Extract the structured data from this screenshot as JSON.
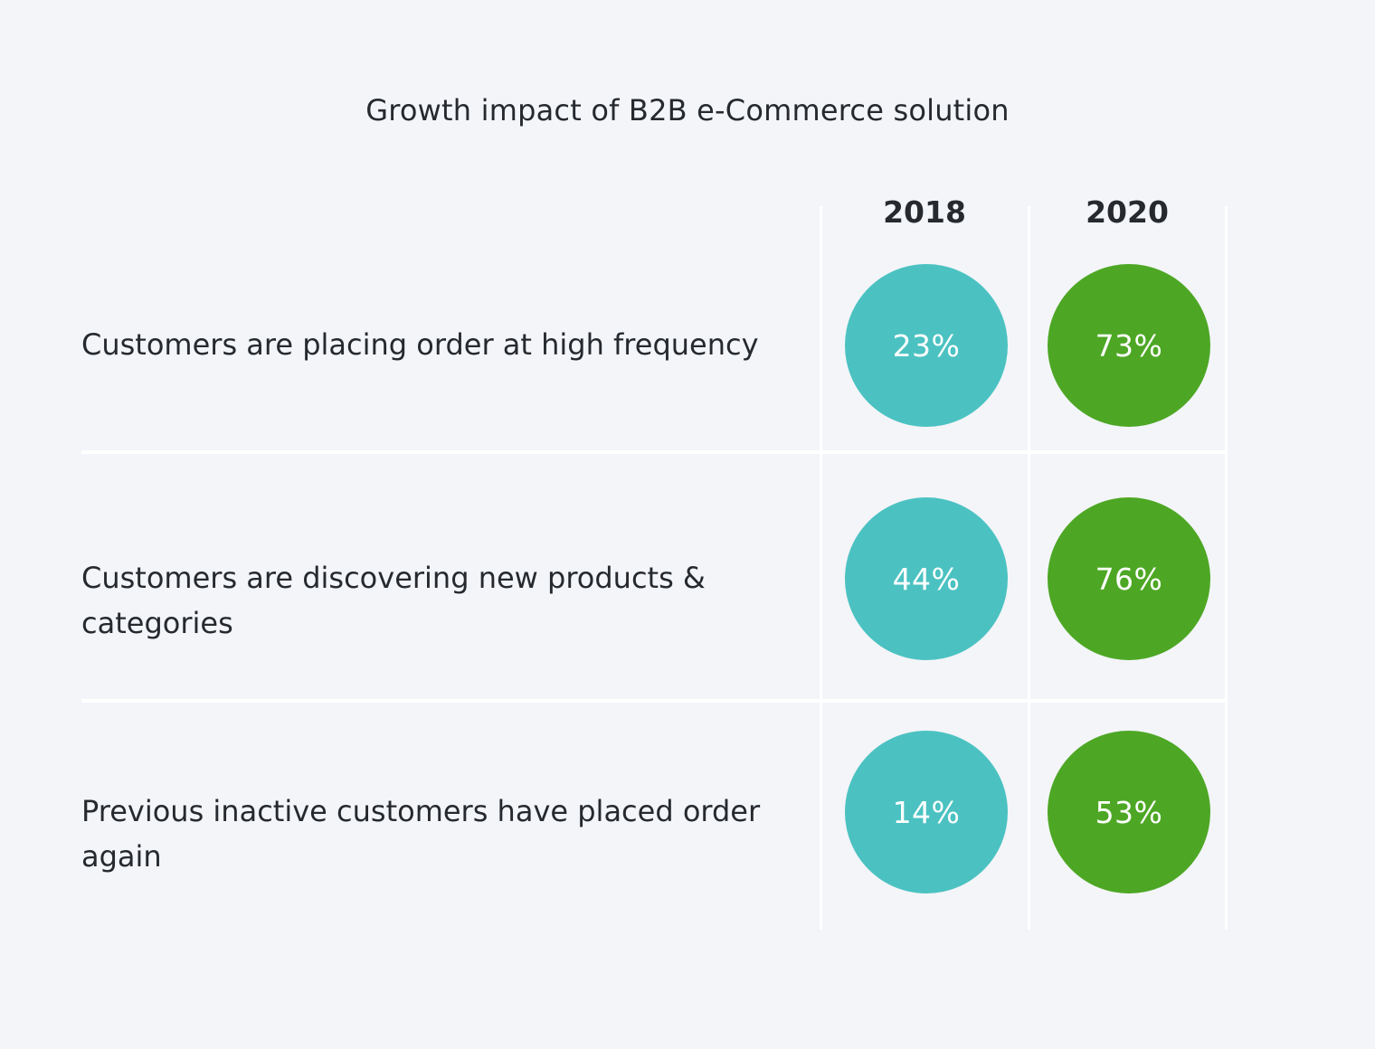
{
  "chart_data": {
    "type": "table",
    "title": "Growth impact of B2B e-Commerce solution",
    "columns": [
      "2018",
      "2020"
    ],
    "rows": [
      {
        "label": "Customers are placing order at high frequency",
        "values": [
          "23%",
          "73%"
        ]
      },
      {
        "label": "Customers are discovering new products & categories",
        "values": [
          "44%",
          "76%"
        ]
      },
      {
        "label": "Previous inactive customers have placed order again",
        "values": [
          "14%",
          "53%"
        ]
      }
    ],
    "colors": {
      "2018": "#4bc2c1",
      "2020": "#4da724"
    }
  }
}
